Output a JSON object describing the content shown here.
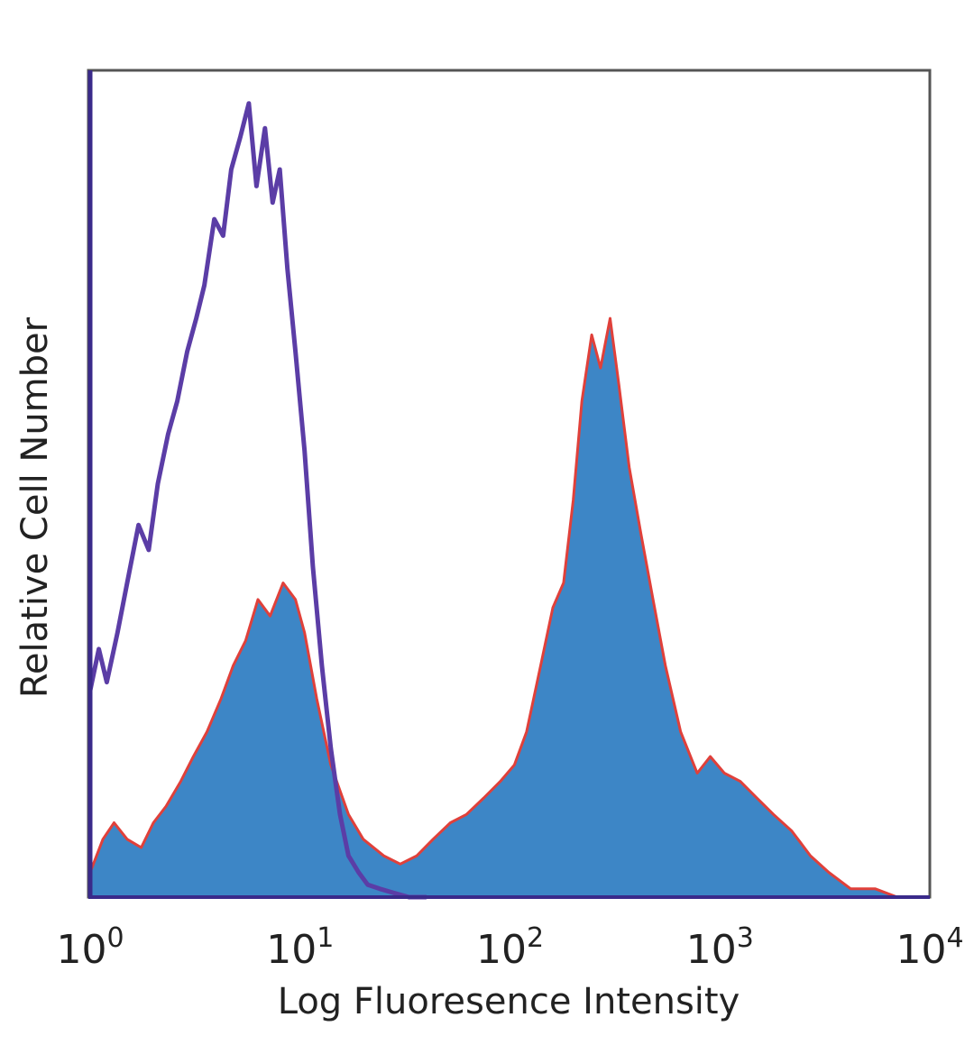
{
  "chart_data": {
    "type": "area",
    "title": "",
    "xlabel": "Log Fluoresence Intensity",
    "ylabel": "Relative Cell Number",
    "x_scale": "log",
    "xlim": [
      1,
      10000
    ],
    "ylim": [
      0,
      1
    ],
    "grid": false,
    "legend": "none",
    "x_ticks": [
      {
        "base": "10",
        "exp": "0"
      },
      {
        "base": "10",
        "exp": "1"
      },
      {
        "base": "10",
        "exp": "2"
      },
      {
        "base": "10",
        "exp": "3"
      },
      {
        "base": "10",
        "exp": "4"
      }
    ],
    "series": [
      {
        "style": "filled",
        "color": "#3d86c6",
        "edge_color": "#e0403a",
        "x": [
          1.0,
          1.15,
          1.3,
          1.5,
          1.75,
          2.0,
          2.3,
          2.7,
          3.1,
          3.6,
          4.2,
          4.8,
          5.5,
          6.3,
          7.2,
          8.3,
          9.5,
          10.5,
          12.0,
          14.0,
          17.0,
          20.0,
          25.0,
          30.0,
          36.0,
          43.0,
          52.0,
          62.0,
          75.0,
          90.0,
          105.0,
          120.0,
          140.0,
          160.0,
          180.0,
          200.0,
          220.0,
          245.0,
          270.0,
          300.0,
          330.0,
          370.0,
          420.0,
          480.0,
          550.0,
          650.0,
          780.0,
          900.0,
          1050.0,
          1250.0,
          1500.0,
          1800.0,
          2200.0,
          2700.0,
          3300.0,
          4200.0,
          5500.0,
          7000.0
        ],
        "y": [
          0.03,
          0.07,
          0.09,
          0.07,
          0.06,
          0.09,
          0.11,
          0.14,
          0.17,
          0.2,
          0.24,
          0.28,
          0.31,
          0.36,
          0.34,
          0.38,
          0.36,
          0.32,
          0.24,
          0.16,
          0.1,
          0.07,
          0.05,
          0.04,
          0.05,
          0.07,
          0.09,
          0.1,
          0.12,
          0.14,
          0.16,
          0.2,
          0.28,
          0.35,
          0.38,
          0.48,
          0.6,
          0.68,
          0.64,
          0.7,
          0.62,
          0.52,
          0.44,
          0.36,
          0.28,
          0.2,
          0.15,
          0.17,
          0.15,
          0.14,
          0.12,
          0.1,
          0.08,
          0.05,
          0.03,
          0.01,
          0.01,
          0.0
        ]
      },
      {
        "style": "outline",
        "color": "#5b3da6",
        "x": [
          1.0,
          1.1,
          1.2,
          1.35,
          1.5,
          1.7,
          1.9,
          2.1,
          2.35,
          2.6,
          2.9,
          3.2,
          3.5,
          3.9,
          4.3,
          4.7,
          5.2,
          5.7,
          6.2,
          6.8,
          7.4,
          8.0,
          8.7,
          9.5,
          10.5,
          11.5,
          12.7,
          14.0,
          15.5,
          17.0,
          19.0,
          21.0,
          24.0,
          28.0,
          33.0,
          40.0
        ],
        "y": [
          0.25,
          0.3,
          0.26,
          0.32,
          0.38,
          0.45,
          0.42,
          0.5,
          0.56,
          0.6,
          0.66,
          0.7,
          0.74,
          0.82,
          0.8,
          0.88,
          0.92,
          0.96,
          0.86,
          0.93,
          0.84,
          0.88,
          0.76,
          0.66,
          0.54,
          0.4,
          0.28,
          0.18,
          0.1,
          0.05,
          0.03,
          0.015,
          0.01,
          0.005,
          0.0,
          0.0
        ]
      }
    ]
  }
}
